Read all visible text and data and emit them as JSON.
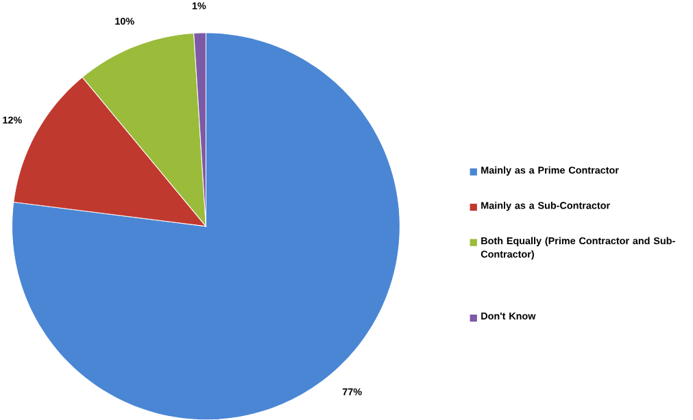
{
  "chart_data": {
    "type": "pie",
    "categories": [
      "Mainly as a Prime Contractor",
      "Mainly as a Sub-Contractor",
      "Both Equally (Prime Contractor and Sub-Contractor)",
      "Don't Know"
    ],
    "values": [
      77,
      12,
      10,
      1
    ],
    "colors": [
      "#4a86d4",
      "#c0392f",
      "#9bbb3b",
      "#7d5aa6"
    ],
    "value_labels": [
      "77%",
      "12%",
      "10%",
      "1%"
    ],
    "legend": "right"
  }
}
